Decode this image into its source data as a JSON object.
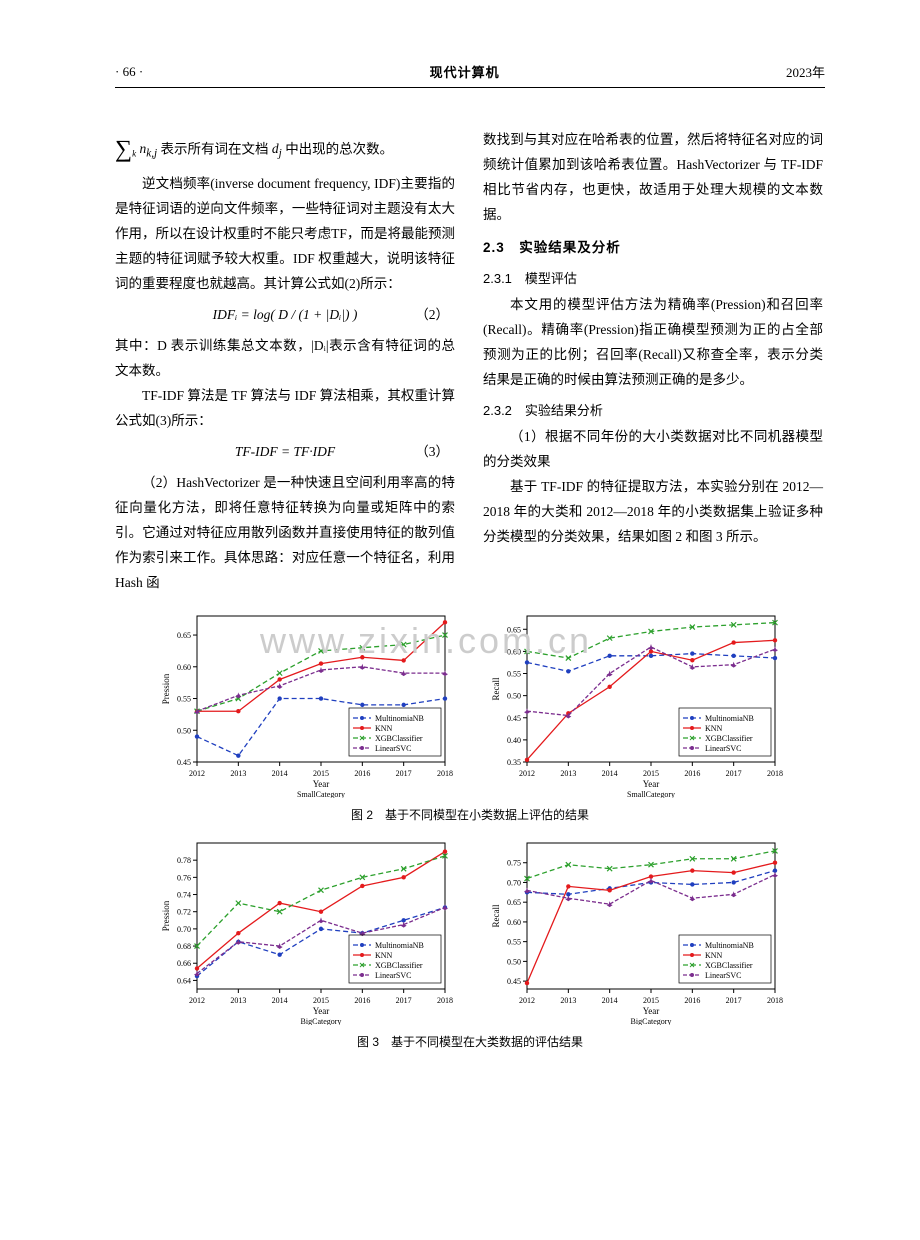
{
  "header": {
    "page": "· 66 ·",
    "title": "现代计算机",
    "year": "2023年"
  },
  "left": {
    "p1a": "表示所有词在文档",
    "p1b": "中出现的总次数。",
    "p2": "逆文档频率(inverse document frequency, IDF)主要指的是特征词语的逆向文件频率，一些特征词对主题没有太大作用，所以在设计权重时不能只考虑TF，而是将最能预测主题的特征词赋予较大权重。IDF 权重越大，说明该特征词的重要程度也就越高。其计算公式如(2)所示：",
    "f2": "IDFᵢ = log( D / (1 + |Dᵢ|) )",
    "f2num": "（2）",
    "p3": "其中：D 表示训练集总文本数，|Dᵢ|表示含有特征词的总文本数。",
    "p4": "TF-IDF 算法是 TF 算法与 IDF 算法相乘，其权重计算公式如(3)所示：",
    "f3": "TF-IDF = TF·IDF",
    "f3num": "（3）",
    "p5": "（2）HashVectorizer 是一种快速且空间利用率高的特征向量化方法，即将任意特征转换为向量或矩阵中的索引。它通过对特征应用散列函数并直接使用特征的散列值作为索引来工作。具体思路：对应任意一个特征名，利用 Hash 函"
  },
  "right": {
    "p1": "数找到与其对应在哈希表的位置，然后将特征名对应的词频统计值累加到该哈希表位置。HashVectorizer 与 TF-IDF 相比节省内存，也更快，故适用于处理大规模的文本数据。",
    "s23": "2.3　实验结果及分析",
    "s231": "2.3.1　模型评估",
    "p2": "本文用的模型评估方法为精确率(Pression)和召回率(Recall)。精确率(Pression)指正确模型预测为正的占全部预测为正的比例；召回率(Recall)又称查全率，表示分类结果是正确的时候由算法预测正确的是多少。",
    "s232": "2.3.2　实验结果分析",
    "p3": "（1）根据不同年份的大小类数据对比不同机器模型的分类效果",
    "p4": "基于 TF-IDF 的特征提取方法，本实验分别在 2012—2018 年的大类和 2012—2018 年的小类数据集上验证多种分类模型的分类效果，结果如图 2 和图 3 所示。"
  },
  "captions": {
    "fig2": "图 2　基于不同模型在小类数据上评估的结果",
    "fig3": "图 3　基于不同模型在大类数据的评估结果"
  },
  "chart_common": {
    "years": [
      2012,
      2013,
      2014,
      2015,
      2016,
      2017,
      2018
    ],
    "colors": {
      "multinb": "#1f3fbf",
      "knn": "#e41a1c",
      "xgb": "#2ca02c",
      "svc": "#7b2d8e",
      "axis": "#000000",
      "bg": "#ffffff"
    },
    "legend_labels": [
      "MultinomiaNB",
      "KNN",
      "XGBClassifier",
      "LinearSVC"
    ],
    "markers": [
      "dot",
      "dot",
      "x",
      "star"
    ],
    "dash": [
      "5,3",
      "0",
      "5,3",
      "4,2"
    ],
    "axis_fontsize": 8,
    "label_fontsize": 9
  },
  "fig2_left": {
    "ylabel": "Pression",
    "xlabel": "Year",
    "xsub": "SmallCategory",
    "ylim": [
      0.45,
      0.68
    ],
    "yticks": [
      0.45,
      0.5,
      0.55,
      0.6,
      0.65
    ],
    "series": {
      "multinb": [
        0.49,
        0.46,
        0.55,
        0.55,
        0.54,
        0.54,
        0.55
      ],
      "knn": [
        0.53,
        0.53,
        0.58,
        0.605,
        0.615,
        0.61,
        0.67
      ],
      "xgb": [
        0.53,
        0.55,
        0.59,
        0.625,
        0.63,
        0.635,
        0.65
      ],
      "svc": [
        0.53,
        0.555,
        0.57,
        0.595,
        0.6,
        0.59,
        0.59
      ]
    }
  },
  "fig2_right": {
    "ylabel": "Recall",
    "xlabel": "Year",
    "xsub": "SmallCategory",
    "ylim": [
      0.35,
      0.68
    ],
    "yticks": [
      0.35,
      0.4,
      0.45,
      0.5,
      0.55,
      0.6,
      0.65
    ],
    "series": {
      "multinb": [
        0.575,
        0.555,
        0.59,
        0.59,
        0.595,
        0.59,
        0.585
      ],
      "knn": [
        0.355,
        0.46,
        0.52,
        0.6,
        0.58,
        0.62,
        0.625
      ],
      "xgb": [
        0.6,
        0.585,
        0.63,
        0.645,
        0.655,
        0.66,
        0.665
      ],
      "svc": [
        0.465,
        0.455,
        0.55,
        0.61,
        0.565,
        0.57,
        0.605
      ]
    }
  },
  "fig3_left": {
    "ylabel": "Pression",
    "xlabel": "Year",
    "xsub": "BigCategory",
    "ylim": [
      0.63,
      0.8
    ],
    "yticks": [
      0.64,
      0.66,
      0.68,
      0.7,
      0.72,
      0.74,
      0.76,
      0.78
    ],
    "series": {
      "multinb": [
        0.645,
        0.685,
        0.67,
        0.7,
        0.695,
        0.71,
        0.725
      ],
      "knn": [
        0.654,
        0.695,
        0.73,
        0.72,
        0.75,
        0.76,
        0.79
      ],
      "xgb": [
        0.68,
        0.73,
        0.72,
        0.745,
        0.76,
        0.77,
        0.785
      ],
      "svc": [
        0.648,
        0.685,
        0.68,
        0.71,
        0.695,
        0.705,
        0.725
      ]
    }
  },
  "fig3_right": {
    "ylabel": "Recall",
    "xlabel": "Year",
    "xsub": "BigCategory",
    "ylim": [
      0.43,
      0.8
    ],
    "yticks": [
      0.45,
      0.5,
      0.55,
      0.6,
      0.65,
      0.7,
      0.75
    ],
    "series": {
      "multinb": [
        0.675,
        0.67,
        0.685,
        0.7,
        0.695,
        0.7,
        0.73
      ],
      "knn": [
        0.445,
        0.69,
        0.68,
        0.715,
        0.73,
        0.725,
        0.75
      ],
      "xgb": [
        0.71,
        0.745,
        0.735,
        0.745,
        0.76,
        0.76,
        0.78
      ],
      "svc": [
        0.68,
        0.66,
        0.645,
        0.705,
        0.66,
        0.67,
        0.72
      ]
    }
  }
}
